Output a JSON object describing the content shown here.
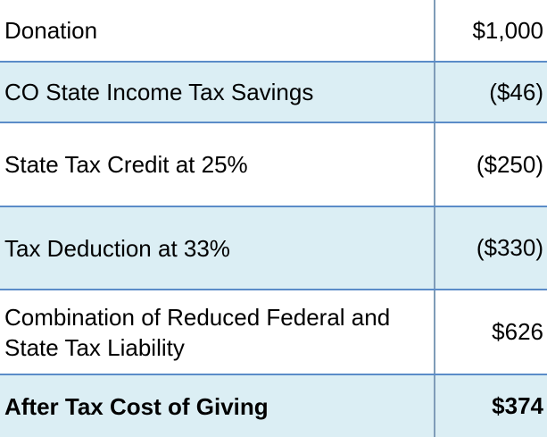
{
  "table": {
    "rows": [
      [
        "Donation",
        "$1,000"
      ],
      [
        "CO State Income Tax Savings",
        "($46)"
      ],
      [
        "State Tax Credit at 25%",
        "($250)"
      ],
      [
        "Tax Deduction at 33%",
        "($330)"
      ],
      [
        "Combination of Reduced Federal and State Tax Liability",
        "$626"
      ],
      [
        "After Tax Cost of Giving",
        "$374"
      ]
    ]
  }
}
